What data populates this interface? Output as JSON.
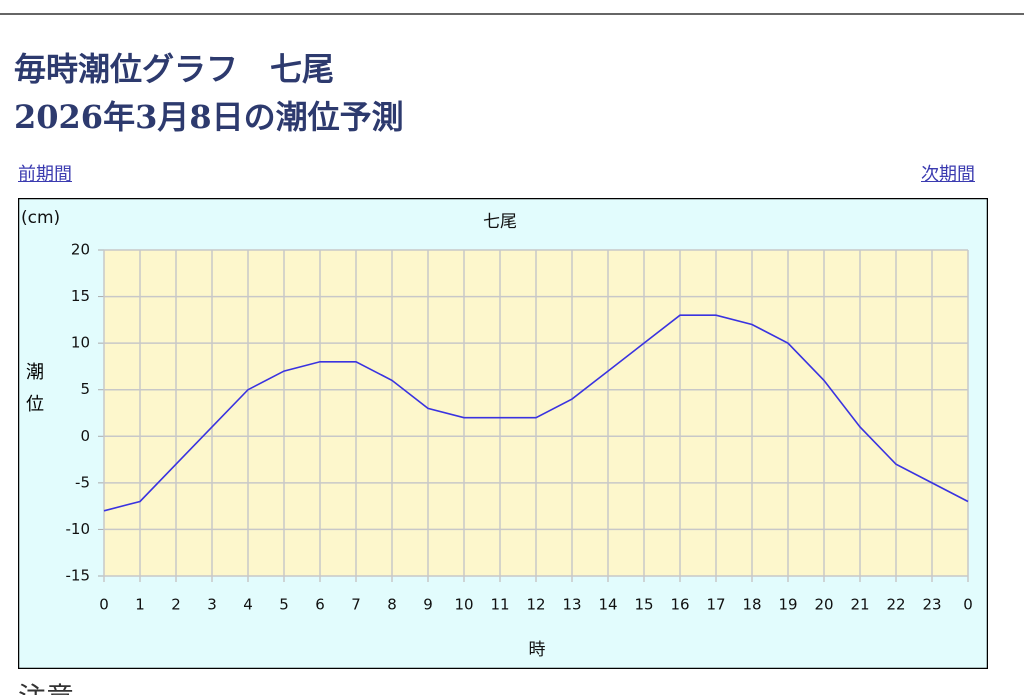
{
  "header": {
    "title": [
      "毎時潮位グラフ　七尾",
      "2026年3月8日の潮位予測"
    ]
  },
  "nav": {
    "prev": "前期間",
    "next": "次期間"
  },
  "chart_data": {
    "type": "line",
    "title": "七尾",
    "unit_label": "(cm)",
    "y_label": "潮位",
    "x_label": "時",
    "categories": [
      "0",
      "1",
      "2",
      "3",
      "4",
      "5",
      "6",
      "7",
      "8",
      "9",
      "10",
      "11",
      "12",
      "13",
      "14",
      "15",
      "16",
      "17",
      "18",
      "19",
      "20",
      "21",
      "22",
      "23",
      "0"
    ],
    "series": [
      {
        "name": "七尾",
        "color": "#3a33e0",
        "values": [
          -8,
          -7,
          -3,
          1,
          5,
          7,
          8,
          8,
          6,
          3,
          2,
          2,
          2,
          4,
          7,
          10,
          13,
          13,
          12,
          10,
          6,
          1,
          -3,
          -5,
          -7
        ]
      }
    ],
    "ylim": [
      -15,
      20
    ],
    "yticks": [
      -15,
      -10,
      -5,
      0,
      5,
      10,
      15,
      20
    ],
    "grid": true,
    "plot_background": "#fdf7cc",
    "background": "#e2fcfd"
  },
  "footer": {
    "heading": "注意"
  }
}
